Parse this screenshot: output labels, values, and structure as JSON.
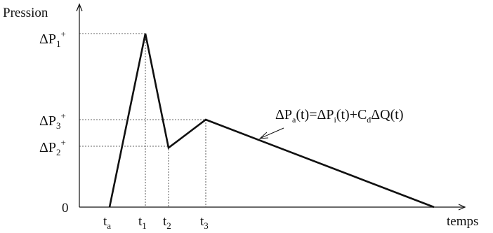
{
  "chart_data": {
    "type": "line",
    "xlabel": "temps",
    "ylabel": "Pression",
    "x_ticks": [
      {
        "base": "t",
        "sub": "a"
      },
      {
        "base": "t",
        "sub": "1"
      },
      {
        "base": "t",
        "sub": "2"
      },
      {
        "base": "t",
        "sub": "3"
      }
    ],
    "y_ticks": [
      {
        "base": "ΔP",
        "sub": "1",
        "sup": "+",
        "level": 1.0
      },
      {
        "base": "ΔP",
        "sub": "3",
        "sup": "+",
        "level": 0.504
      },
      {
        "base": "ΔP",
        "sub": "2",
        "sup": "+",
        "level": 0.342
      },
      {
        "base": "0",
        "sub": "",
        "sup": "",
        "level": 0
      }
    ],
    "series": [
      {
        "points": [
          {
            "t": "ta",
            "y": 0
          },
          {
            "t": "t1",
            "y": 1.0
          },
          {
            "t": "t2",
            "y": 0.342
          },
          {
            "t": "t3",
            "y": 0.504
          },
          {
            "t": "end",
            "y": 0
          }
        ]
      }
    ],
    "annotation": {
      "lhs": "ΔP",
      "lhs_sub": "a",
      "mid": "(t)=ΔP",
      "mid_sub": "i",
      "rhs": "(t)+C",
      "rhs_sub": "d",
      "tail": "ΔQ(t)"
    },
    "grid": false
  }
}
